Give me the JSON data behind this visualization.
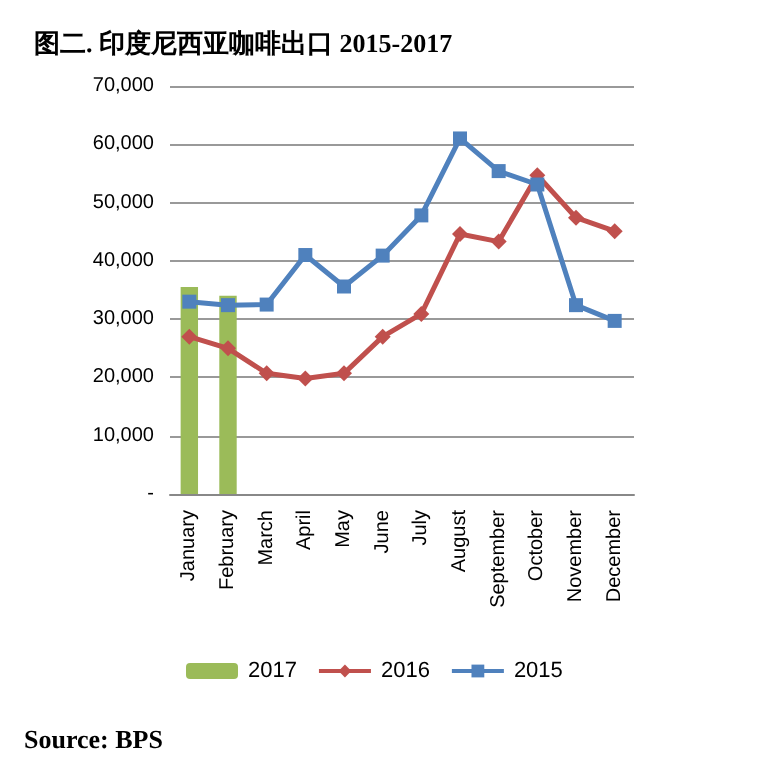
{
  "chart_data": {
    "type": "line",
    "title": "图二. 印度尼西亚咖啡出口 2015-2017",
    "categories": [
      "January",
      "February",
      "March",
      "April",
      "May",
      "June",
      "July",
      "August",
      "September",
      "October",
      "November",
      "December"
    ],
    "series": [
      {
        "name": "2017",
        "type": "bar",
        "color": "#9bbb59",
        "values": [
          35500,
          34000,
          null,
          null,
          null,
          null,
          null,
          null,
          null,
          null,
          null,
          null
        ]
      },
      {
        "name": "2016",
        "marker": "diamond",
        "color": "#c0504d",
        "values": [
          27000,
          25000,
          20700,
          19800,
          20700,
          27000,
          30900,
          44600,
          43300,
          54700,
          47400,
          45100
        ]
      },
      {
        "name": "2015",
        "marker": "square",
        "color": "#4f81bd",
        "values": [
          33000,
          32400,
          32500,
          41000,
          35600,
          40900,
          47800,
          61000,
          55400,
          53100,
          32400,
          29700
        ]
      }
    ],
    "ylim": [
      0,
      70000
    ],
    "yticks": [
      {
        "value": 0,
        "label": "-"
      },
      {
        "value": 10000,
        "label": "10,000"
      },
      {
        "value": 20000,
        "label": "20,000"
      },
      {
        "value": 30000,
        "label": "30,000"
      },
      {
        "value": 40000,
        "label": "40,000"
      },
      {
        "value": 50000,
        "label": "50,000"
      },
      {
        "value": 60000,
        "label": "60,000"
      },
      {
        "value": 70000,
        "label": "70,000"
      }
    ],
    "grid": "y",
    "legend": "bottom",
    "annotations": [
      "Source: BPS"
    ]
  }
}
